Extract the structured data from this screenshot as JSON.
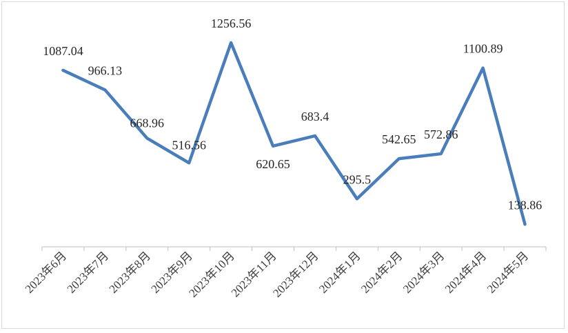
{
  "chart_data": {
    "type": "line",
    "title": "",
    "xlabel": "",
    "ylabel": "",
    "ylim": [
      0,
      1300
    ],
    "grid": false,
    "legend": "none",
    "line_color": "#4a7ebb",
    "categories": [
      "2023年6月",
      "2023年7月",
      "2023年8月",
      "2023年9月",
      "2023年10月",
      "2023年11月",
      "2023年12月",
      "2024年1月",
      "2024年2月",
      "2024年3月",
      "2024年4月",
      "2024年5月"
    ],
    "values": [
      1087.04,
      966.13,
      668.96,
      516.56,
      1256.56,
      620.65,
      683.4,
      295.5,
      542.65,
      572.86,
      1100.89,
      138.86
    ],
    "labels": [
      "1087.04",
      "966.13",
      "668.96",
      "516.56",
      "1256.56",
      "620.65",
      "683.4",
      "295.5",
      "542.65",
      "572.86",
      "1100.89",
      "138.86"
    ]
  }
}
